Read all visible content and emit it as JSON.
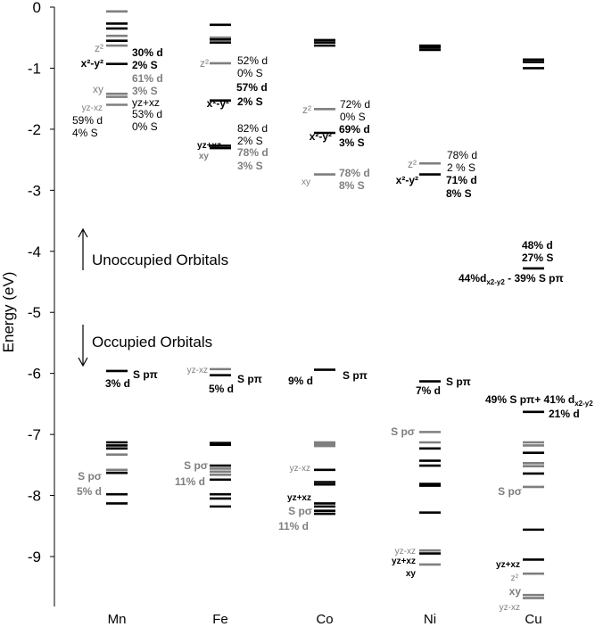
{
  "chart_data": {
    "type": "level-diagram",
    "ylabel": "Energy (eV)",
    "ylim": [
      -10,
      0
    ],
    "yticks": [
      0,
      -1,
      -2,
      -3,
      -4,
      -5,
      -6,
      -7,
      -8,
      -9
    ],
    "categories": [
      "Mn",
      "Fe",
      "Co",
      "Ni",
      "Cu"
    ],
    "colors": {
      "black": "#000000",
      "gray": "#7f7f7f"
    },
    "levels": [
      {
        "category": "Mn",
        "energies": [
          -0.07,
          -0.27,
          -0.35,
          -0.47,
          -0.55,
          -0.63,
          -0.93,
          -1.42,
          -1.47,
          -1.6,
          -5.96,
          -7.13,
          -7.18,
          -7.23,
          -7.33,
          -7.58,
          -7.63,
          -7.98,
          -8.13
        ],
        "gray": [
          -0.07,
          -0.47,
          -0.63,
          -1.42,
          -1.47,
          -1.6,
          -7.33,
          -7.58
        ]
      },
      {
        "category": "Fe",
        "energies": [
          -0.29,
          -0.5,
          -0.53,
          -0.58,
          -0.92,
          -1.53,
          -2.27,
          -2.31,
          -5.93,
          -6.03,
          -7.14,
          -7.17,
          -7.51,
          -7.56,
          -7.61,
          -7.66,
          -7.74,
          -7.98,
          -8.05,
          -8.18
        ],
        "gray": [
          -0.5,
          -0.92,
          -5.93,
          -7.56,
          -7.61,
          -7.66
        ]
      },
      {
        "category": "Co",
        "energies": [
          -0.54,
          -0.58,
          -0.63,
          -1.67,
          -2.06,
          -2.74,
          -5.94,
          -7.13,
          -7.16,
          -7.19,
          -7.58,
          -7.78,
          -7.82,
          -8.13,
          -8.18,
          -8.25,
          -8.3
        ],
        "gray": [
          -1.67,
          -2.74,
          -7.13,
          -7.16,
          -7.19
        ]
      },
      {
        "category": "Ni",
        "energies": [
          -0.63,
          -0.66,
          -0.7,
          -2.56,
          -2.74,
          -6.13,
          -6.96,
          -7.13,
          -7.23,
          -7.43,
          -7.51,
          -7.81,
          -7.84,
          -8.28,
          -8.9,
          -8.95,
          -9.13
        ],
        "gray": [
          -2.56,
          -6.96,
          -7.13,
          -8.9,
          -9.13
        ]
      },
      {
        "category": "Cu",
        "energies": [
          -0.86,
          -0.9,
          -1.0,
          -4.28,
          -6.63,
          -7.13,
          -7.18,
          -7.3,
          -7.47,
          -7.52,
          -7.64,
          -7.86,
          -8.56,
          -9.05,
          -9.28,
          -9.63,
          -9.68
        ],
        "gray": [
          -7.13,
          -7.18,
          -7.47,
          -7.52,
          -7.86,
          -9.28,
          -9.63,
          -9.68
        ]
      }
    ]
  },
  "annotations": {
    "mn": {
      "z2": "z²",
      "x2y2": "x²-y²",
      "d30": "30% d",
      "s2": "2% S",
      "d61": "61% d",
      "s3": "3% S",
      "xy": "xy",
      "yzxz_gray": "yz-xz",
      "yzxz": "yz+xz",
      "d53": "53% d",
      "s0": "0% S",
      "d59": "59% d",
      "s4": "4% S",
      "spp": "S pπ",
      "d3": "3% d",
      "spsigma": "S pσ",
      "d5": "5% d"
    },
    "fe": {
      "z2": "z²",
      "d52": "52% d",
      "s0": "0% S",
      "d57": "57% d",
      "s2": "2% S",
      "x2y2": "x²-y²",
      "d82": "82% d",
      "s2b": "2% S",
      "yzxz": "yz+xz",
      "xy": "xy",
      "d78": "78% d",
      "s3": "3% S",
      "yzxz_gray": "yz-xz",
      "spp": "S pπ",
      "d5": "5% d",
      "spsigma": "S pσ",
      "d11": "11% d"
    },
    "co": {
      "z2": "z²",
      "d72": "72% d",
      "s0": "0% S",
      "x2y2": "x²-y²",
      "d69": "69% d",
      "s3": "3% S",
      "xy": "xy",
      "d78": "78% d",
      "s8": "8% S",
      "spp": "S pπ",
      "d9": "9% d",
      "yzxz_gray": "yz-xz",
      "yzxz": "yz+xz",
      "spsigma": "S pσ",
      "d11": "11% d"
    },
    "ni": {
      "z2": "z²",
      "d78": "78% d",
      "s2": "2 % S",
      "x2y2": "x²-y²",
      "d71": "71% d",
      "s8": "8% S",
      "spp": "S pπ",
      "d7": "7% d",
      "spsigma": "S pσ",
      "yzxz_gray": "yz-xz",
      "yzxz": "yz+xz",
      "xy": "xy"
    },
    "cu": {
      "d48": "48% d",
      "s27": "27% S",
      "mix_a": "44%d",
      "mix_sub": "x2-y2",
      "mix_b": " - 39% S pπ",
      "spp41_a": "49% S pπ+ 41% d",
      "spp41_sub": "x2-y2",
      "d21": "21% d",
      "spsigma": "S pσ",
      "yzxz": "yz+xz",
      "z2": "z²",
      "xy": "xy",
      "yzxz_gray": "yz-xz"
    },
    "unoccupied": "Unoccupied  Orbitals",
    "occupied": "Occupied  Orbitals"
  }
}
